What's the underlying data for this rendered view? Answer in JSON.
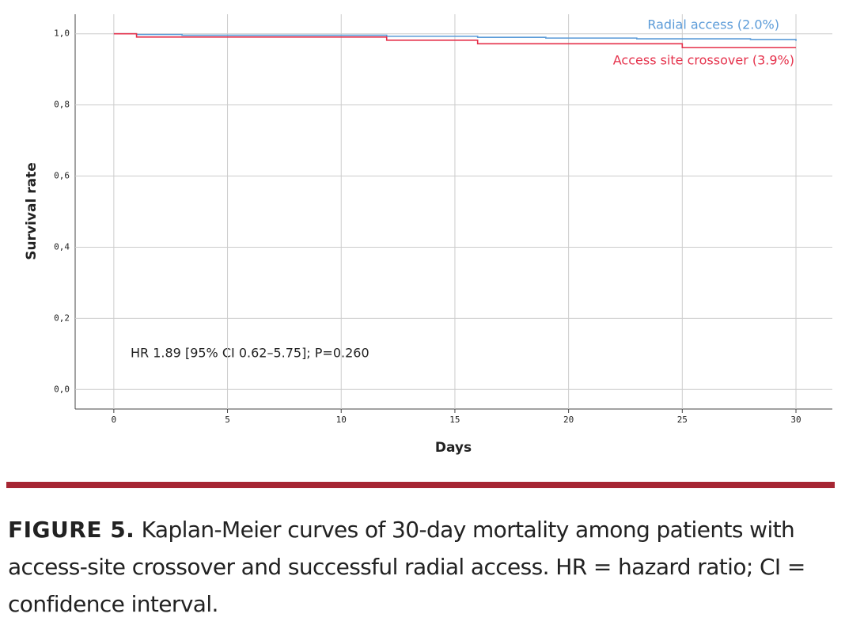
{
  "chart_data": {
    "type": "line",
    "drawstyle": "steps-post",
    "y_label": "Survival rate",
    "x_label": "Days",
    "annotation": "HR 1.89 [95% CI 0.62–5.75]; P=0.260",
    "xlim": [
      -1.7,
      31.6
    ],
    "ylim": [
      -0.055,
      1.055
    ],
    "xticks": [
      0,
      5,
      10,
      15,
      20,
      25,
      30
    ],
    "yticks": [
      {
        "value": 0,
        "label": "0,0"
      },
      {
        "value": 0.2,
        "label": "0,2"
      },
      {
        "value": 0.4,
        "label": "0,4"
      },
      {
        "value": 0.6,
        "label": "0,6"
      },
      {
        "value": 0.8,
        "label": "0,8"
      },
      {
        "value": 1,
        "label": "1,0"
      }
    ],
    "grid": true,
    "series": [
      {
        "name": "Radial access (2.0%)",
        "color": "#5b9bd8",
        "x": [
          0,
          1,
          3,
          12,
          16,
          19,
          23,
          28,
          30
        ],
        "values": [
          1.0,
          0.998,
          0.996,
          0.993,
          0.99,
          0.988,
          0.986,
          0.984,
          0.98
        ]
      },
      {
        "name": "Access site crossover (3.9%)",
        "color": "#e5314b",
        "x": [
          0,
          1,
          12,
          16,
          25,
          30
        ],
        "values": [
          1.0,
          0.991,
          0.982,
          0.972,
          0.961,
          0.961
        ]
      }
    ]
  },
  "caption": {
    "label": "FIGURE 5.",
    "text": "Kaplan-Meier curves of 30-day mortality among patients with access-site crossover and successful radial access. HR = hazard ratio; CI = confidence interval."
  }
}
